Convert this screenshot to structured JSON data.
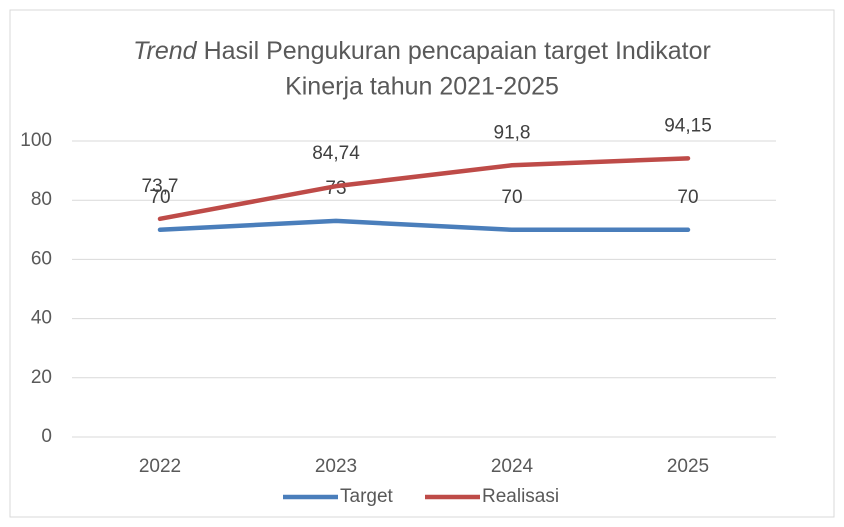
{
  "chart_data": {
    "type": "line",
    "title": {
      "emphasis": "Trend",
      "line1": "Hasil Pengukuran pencapaian target Indikator",
      "line2": "Kinerja tahun 2021-2025"
    },
    "categories": [
      "2022",
      "2023",
      "2024",
      "2025"
    ],
    "series": [
      {
        "name": "Target",
        "color": "#4a7ebb",
        "values": [
          70,
          73,
          70,
          70
        ]
      },
      {
        "name": "Realisasi",
        "color": "#be4b48",
        "values": [
          73.7,
          84.74,
          91.8,
          94.15
        ],
        "value_labels": [
          "73,7",
          "84,74",
          "91,8",
          "94,15"
        ]
      }
    ],
    "ylim": [
      0,
      100
    ],
    "yticks": [
      0,
      20,
      40,
      60,
      80,
      100
    ],
    "grid": true,
    "legend": "bottom"
  }
}
